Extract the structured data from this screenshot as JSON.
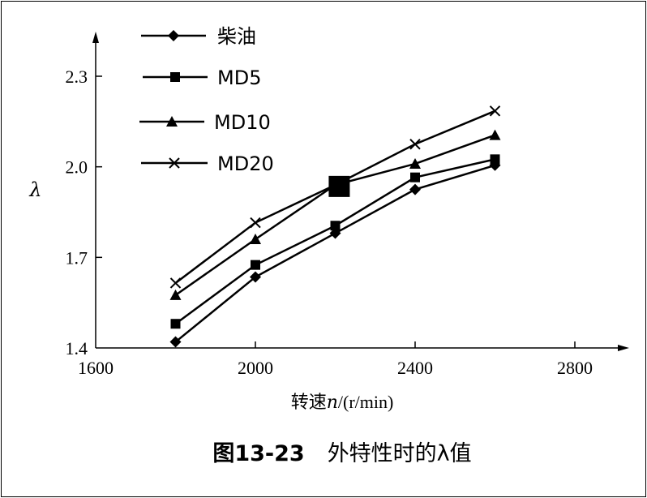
{
  "chart_data": {
    "type": "line",
    "x": [
      1800,
      2000,
      2200,
      2400,
      2600
    ],
    "series": [
      {
        "name": "柴油",
        "marker": "diamond",
        "values": [
          1.42,
          1.635,
          1.78,
          1.925,
          2.005
        ]
      },
      {
        "name": "MD5",
        "marker": "square",
        "values": [
          1.48,
          1.675,
          1.805,
          1.965,
          2.025
        ]
      },
      {
        "name": "MD10",
        "marker": "triangle",
        "values": [
          1.575,
          1.76,
          1.94,
          2.01,
          2.105
        ]
      },
      {
        "name": "MD20",
        "marker": "x",
        "values": [
          1.615,
          1.815,
          1.94,
          2.075,
          2.185
        ]
      }
    ],
    "xlabel_prefix": "转速",
    "xlabel_var": "n",
    "xlabel_unit": "/(r/min)",
    "ylabel": "λ",
    "xlim": [
      1600,
      2900
    ],
    "ylim": [
      1.4,
      2.42
    ],
    "xticks": [
      1600,
      2000,
      2400,
      2800
    ],
    "xtick_labels": [
      "1600",
      "2000",
      "2400",
      "2800"
    ],
    "yticks": [
      1.4,
      1.7,
      2.0,
      2.3
    ],
    "ytick_labels": [
      "1.4",
      "1.7",
      "2.0",
      "2.3"
    ],
    "grid": false,
    "legend_position": "top-left",
    "annotation_marker": {
      "shape": "filled-square",
      "x": 2210,
      "y": 1.935
    },
    "caption_number": "图13-23",
    "caption_text": "外特性时的λ值"
  }
}
